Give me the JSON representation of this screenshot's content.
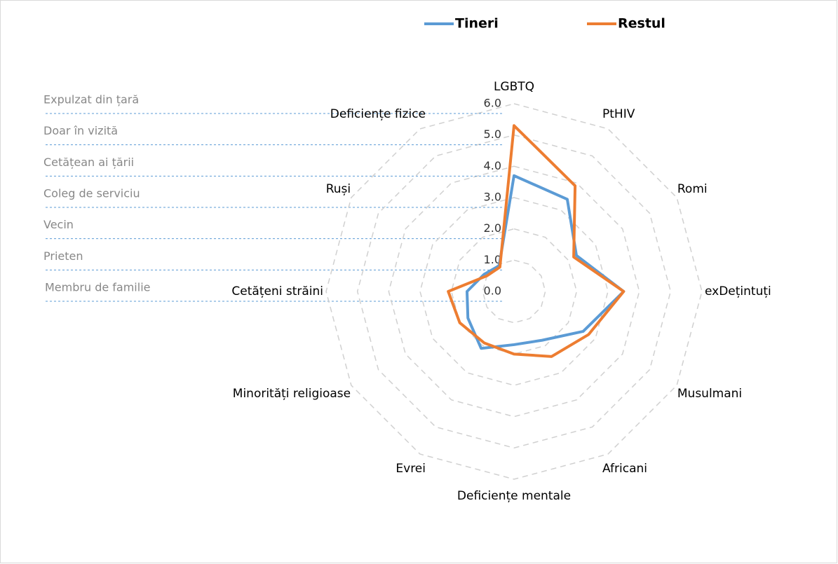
{
  "chart_data": {
    "type": "radar",
    "categories": [
      "LGBTQ",
      "PtHIV",
      "Romi",
      "exDețintuți",
      "Musulmani",
      "Africani",
      "Deficiențe mentale",
      "Evrei",
      "Minorități religioase",
      "Cetățeni străini",
      "Ruși",
      "Deficiențe fizice"
    ],
    "series": [
      {
        "name": "Tineri",
        "color": "#5b9bd5",
        "values": [
          3.7,
          3.4,
          2.3,
          3.5,
          2.55,
          1.8,
          1.7,
          2.1,
          1.7,
          1.5,
          1.1,
          0.95
        ]
      },
      {
        "name": "Restul",
        "color": "#ed7d31",
        "values": [
          5.3,
          3.9,
          2.2,
          3.5,
          2.75,
          2.4,
          2.0,
          1.9,
          2.0,
          2.1,
          1.0,
          0.9
        ]
      }
    ],
    "ylim": [
      0,
      6
    ],
    "yticks": [
      {
        "value": 0,
        "label": "0.0"
      },
      {
        "value": 1,
        "label": "1.0"
      },
      {
        "value": 2,
        "label": "2.0"
      },
      {
        "value": 3,
        "label": "3.0"
      },
      {
        "value": 4,
        "label": "4.0"
      },
      {
        "value": 5,
        "label": "5.0"
      },
      {
        "value": 6,
        "label": "6.0"
      }
    ],
    "scale_labels": [
      "Membru de familie",
      "Prieten",
      "Vecin",
      "Coleg de serviciu",
      "Cetățean ai țării",
      "Doar în vizită",
      "Expulzat din țară"
    ],
    "grid": true,
    "legend": "top"
  }
}
